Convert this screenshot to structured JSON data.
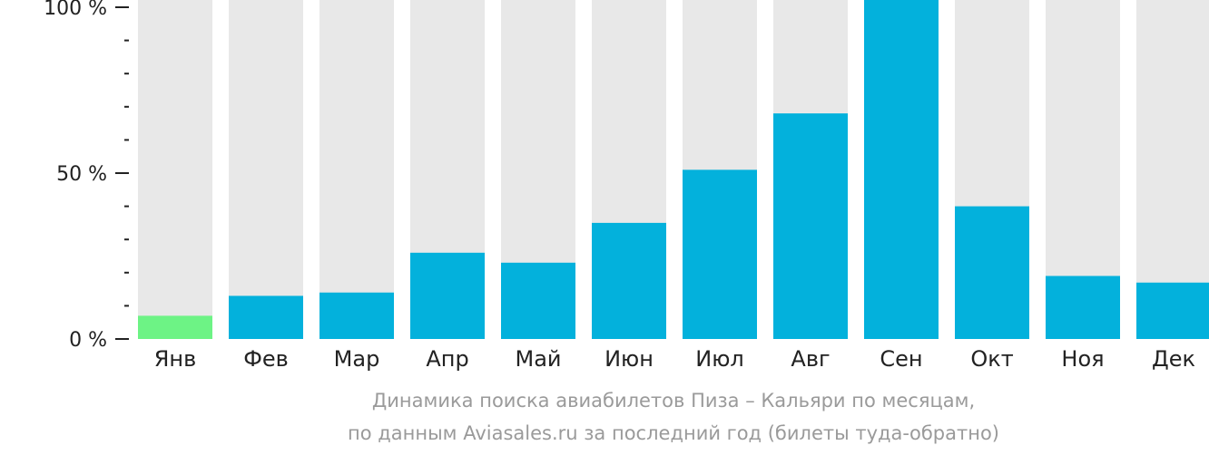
{
  "chart_data": {
    "type": "bar",
    "categories": [
      "Янв",
      "Фев",
      "Мар",
      "Апр",
      "Май",
      "Июн",
      "Июл",
      "Авг",
      "Сен",
      "Окт",
      "Ноя",
      "Дек"
    ],
    "values": [
      7,
      13,
      14,
      26,
      23,
      35,
      51,
      68,
      100,
      40,
      19,
      17
    ],
    "ylim": [
      0,
      100
    ],
    "yticks": [
      {
        "value": 0,
        "label": "0 %"
      },
      {
        "value": 50,
        "label": "50 %"
      },
      {
        "value": 100,
        "label": "100 %"
      }
    ],
    "minor_tick_step": 10,
    "highlight_index": 0,
    "colors": {
      "bar": "#03b1dc",
      "highlight": "#6df385",
      "track": "#e8e8e8",
      "axis": "#222222"
    }
  },
  "caption": {
    "line1": "Динамика поиска авиабилетов Пиза – Кальяри по месяцам,",
    "line2": "по данным Aviasales.ru за последний год (билеты туда-обратно)"
  }
}
